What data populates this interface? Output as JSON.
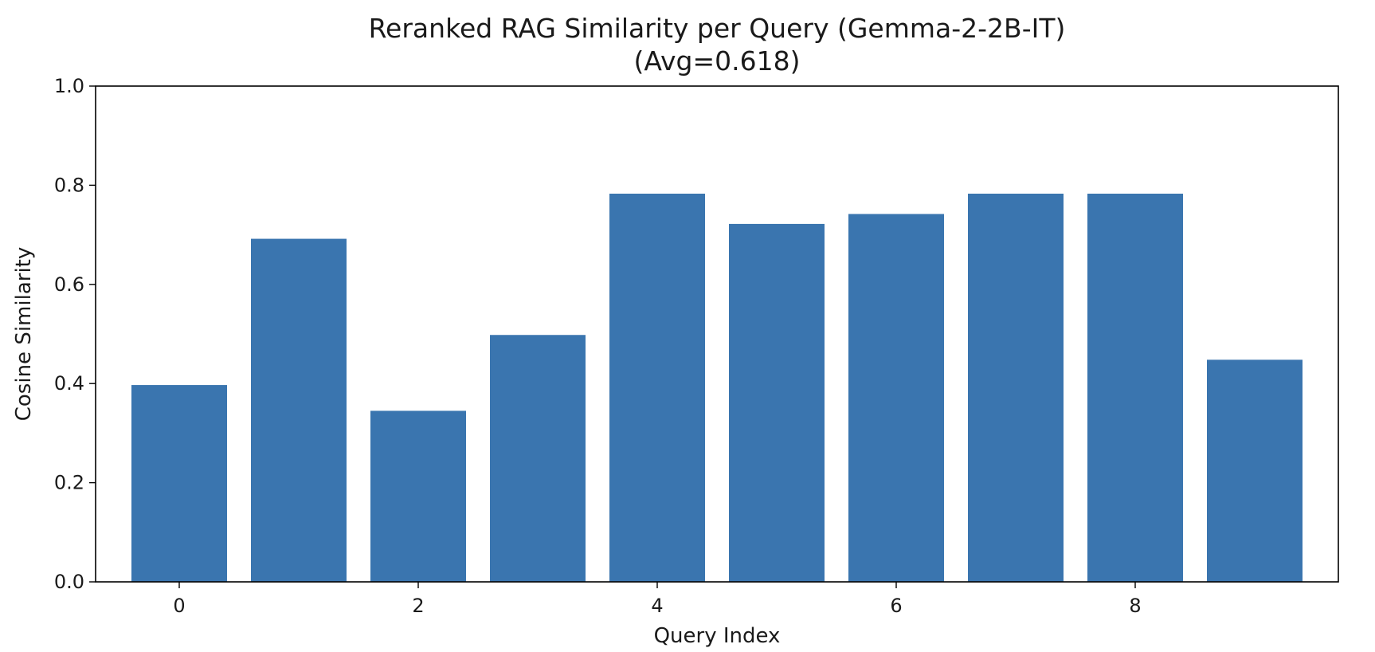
{
  "chart_data": {
    "type": "bar",
    "title": "Reranked RAG Similarity per Query (Gemma-2-2B-IT)",
    "subtitle": "(Avg=0.618)",
    "xlabel": "Query Index",
    "ylabel": "Cosine Similarity",
    "categories": [
      0,
      1,
      2,
      3,
      4,
      5,
      6,
      7,
      8,
      9
    ],
    "values": [
      0.397,
      0.692,
      0.345,
      0.498,
      0.783,
      0.722,
      0.742,
      0.783,
      0.783,
      0.448
    ],
    "ylim": [
      0,
      1.0
    ],
    "xlim": [
      -0.7,
      9.7
    ],
    "yticks": [
      "0.0",
      "0.2",
      "0.4",
      "0.6",
      "0.8",
      "1.0"
    ],
    "xticks": [
      "0",
      "2",
      "4",
      "6",
      "8"
    ],
    "bar_color": "#3a75af",
    "grid": false,
    "legend": false
  }
}
